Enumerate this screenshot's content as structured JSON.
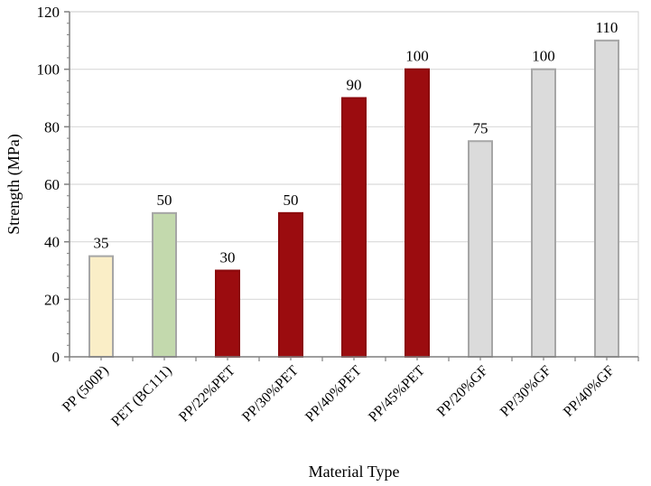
{
  "chart_data": {
    "type": "bar",
    "title": "",
    "xlabel": "Material Type",
    "ylabel": "Strength (MPa)",
    "categories": [
      "PP (500P)",
      "PET (BC111)",
      "PP/22%PET",
      "PP/30%PET",
      "PP/40%PET",
      "PP/45%PET",
      "PP/20%GF",
      "PP/30%GF",
      "PP/40%GF"
    ],
    "values": [
      35,
      50,
      30,
      50,
      90,
      100,
      75,
      100,
      110
    ],
    "data_labels": [
      "35",
      "50",
      "30",
      "50",
      "90",
      "100",
      "75",
      "100",
      "110"
    ],
    "bar_styles": [
      {
        "fill": "#FAEEC7",
        "stroke": "#A6A6A6"
      },
      {
        "fill": "#C3D9AD",
        "stroke": "#A6A6A6"
      },
      {
        "fill": "#9B0C0F",
        "stroke": "#8B090C"
      },
      {
        "fill": "#9B0C0F",
        "stroke": "#8B090C"
      },
      {
        "fill": "#9B0C0F",
        "stroke": "#8B090C"
      },
      {
        "fill": "#9B0C0F",
        "stroke": "#8B090C"
      },
      {
        "fill": "#DBDBDB",
        "stroke": "#A6A6A6"
      },
      {
        "fill": "#DBDBDB",
        "stroke": "#A6A6A6"
      },
      {
        "fill": "#DBDBDB",
        "stroke": "#A6A6A6"
      }
    ],
    "ylim": [
      0,
      120
    ],
    "yticks": [
      0,
      20,
      40,
      60,
      80,
      100,
      120
    ],
    "y_minor_step": 4,
    "grid": true,
    "legend_position": "none",
    "grid_color": "#D9D9D9",
    "axis_color": "#808080",
    "text_color": "#000000"
  }
}
